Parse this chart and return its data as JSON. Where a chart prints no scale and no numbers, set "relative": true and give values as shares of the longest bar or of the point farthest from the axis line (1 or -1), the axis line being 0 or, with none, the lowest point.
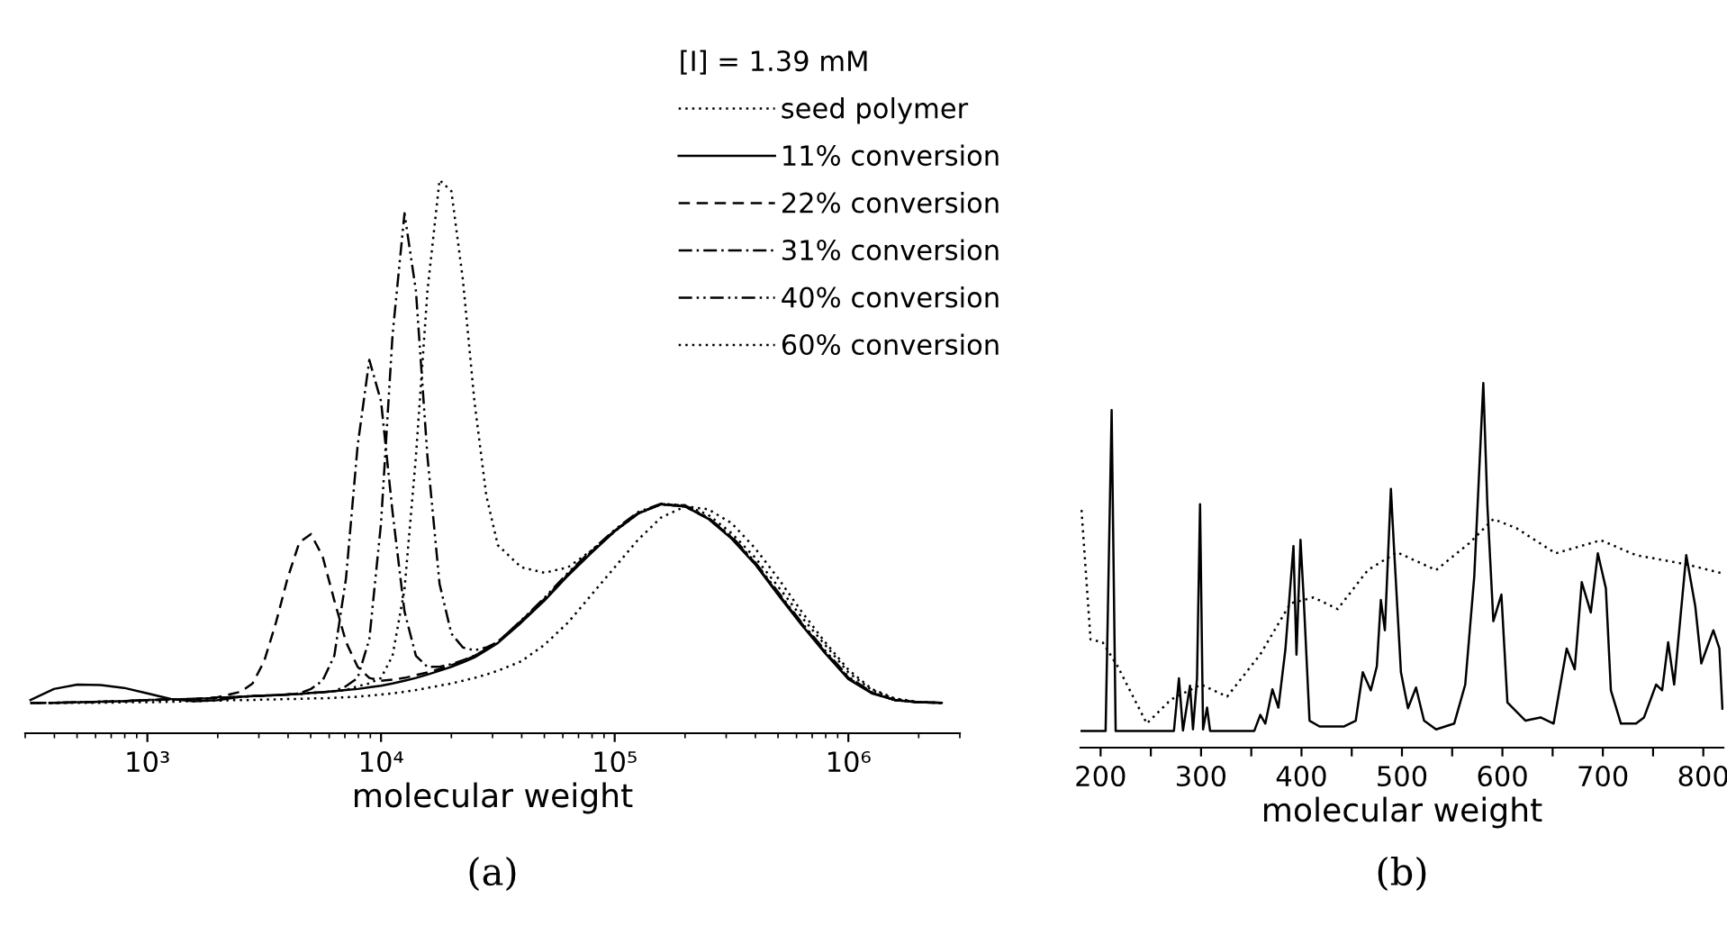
{
  "chart_data": [
    {
      "type": "line",
      "relative": true,
      "log": "x",
      "xlabel": "molecular weight",
      "legend_title": "[I] = 1.39 mM",
      "legend": "top right",
      "tick_labels": "x",
      "grid": false,
      "annotations": [
        "(a)"
      ],
      "xlim": [
        300,
        3000000
      ],
      "xticks": [
        {
          "value": 1000,
          "label": "10³"
        },
        {
          "value": 10000,
          "label": "10⁴"
        },
        {
          "value": 100000,
          "label": "10⁵"
        },
        {
          "value": 1000000,
          "label": "10⁶"
        }
      ],
      "x": [
        316,
        398,
        501,
        631,
        794,
        1000,
        1260,
        1580,
        2000,
        2510,
        2820,
        3160,
        3550,
        3980,
        4470,
        5010,
        5620,
        6310,
        7080,
        7940,
        8910,
        10000,
        11200,
        12600,
        14100,
        15800,
        17800,
        20000,
        22400,
        25100,
        28200,
        31600,
        39800,
        50100,
        63100,
        79400,
        100000,
        126000,
        158000,
        200000,
        251000,
        316000,
        398000,
        501000,
        631000,
        794000,
        1000000,
        1260000,
        1580000,
        2000000,
        2510000
      ],
      "series": [
        {
          "name": "seed polymer",
          "color": "#000000",
          "line_style": "dotted",
          "values": [
            0.055,
            0.055,
            0.055,
            0.055,
            0.056,
            0.056,
            0.057,
            0.058,
            0.059,
            0.06,
            0.06,
            0.061,
            0.061,
            0.062,
            0.062,
            0.063,
            0.063,
            0.064,
            0.065,
            0.066,
            0.068,
            0.07,
            0.072,
            0.075,
            0.078,
            0.082,
            0.086,
            0.09,
            0.095,
            0.1,
            0.106,
            0.113,
            0.13,
            0.16,
            0.2,
            0.25,
            0.3,
            0.35,
            0.39,
            0.41,
            0.405,
            0.38,
            0.335,
            0.28,
            0.22,
            0.165,
            0.115,
            0.08,
            0.063,
            0.056,
            0.055
          ]
        },
        {
          "name": "11% conversion",
          "color": "#000000",
          "line_style": "solid",
          "values": [
            0.06,
            0.08,
            0.088,
            0.087,
            0.082,
            0.072,
            0.062,
            0.058,
            0.06,
            0.066,
            0.067,
            0.068,
            0.069,
            0.07,
            0.071,
            0.073,
            0.074,
            0.076,
            0.078,
            0.08,
            0.083,
            0.086,
            0.09,
            0.095,
            0.1,
            0.106,
            0.113,
            0.12,
            0.128,
            0.137,
            0.15,
            0.163,
            0.2,
            0.24,
            0.285,
            0.326,
            0.365,
            0.397,
            0.414,
            0.41,
            0.388,
            0.352,
            0.306,
            0.25,
            0.196,
            0.145,
            0.098,
            0.072,
            0.06,
            0.056,
            0.055
          ]
        },
        {
          "name": "22% conversion",
          "color": "#000000",
          "line_style": "dashed",
          "values": [
            0.055,
            0.055,
            0.056,
            0.057,
            0.058,
            0.06,
            0.061,
            0.062,
            0.065,
            0.075,
            0.09,
            0.13,
            0.2,
            0.28,
            0.345,
            0.36,
            0.32,
            0.24,
            0.165,
            0.12,
            0.1,
            0.095,
            0.097,
            0.1,
            0.105,
            0.11,
            0.116,
            0.123,
            0.13,
            0.14,
            0.152,
            0.165,
            0.202,
            0.242,
            0.287,
            0.327,
            0.366,
            0.398,
            0.414,
            0.41,
            0.388,
            0.354,
            0.308,
            0.252,
            0.198,
            0.147,
            0.1,
            0.073,
            0.06,
            0.056,
            0.055
          ]
        },
        {
          "name": "31% conversion",
          "color": "#000000",
          "line_style": "dashdot",
          "values": [
            0.055,
            0.055,
            0.056,
            0.057,
            0.058,
            0.06,
            0.061,
            0.062,
            0.064,
            0.066,
            0.067,
            0.068,
            0.069,
            0.07,
            0.072,
            0.08,
            0.095,
            0.14,
            0.28,
            0.52,
            0.675,
            0.6,
            0.4,
            0.22,
            0.14,
            0.12,
            0.12,
            0.125,
            0.132,
            0.14,
            0.152,
            0.165,
            0.203,
            0.243,
            0.288,
            0.328,
            0.366,
            0.398,
            0.414,
            0.41,
            0.389,
            0.354,
            0.308,
            0.252,
            0.198,
            0.147,
            0.1,
            0.073,
            0.06,
            0.056,
            0.055
          ]
        },
        {
          "name": "40% conversion",
          "color": "#000000",
          "line_style": "dashdotdot",
          "values": [
            0.055,
            0.055,
            0.056,
            0.057,
            0.058,
            0.06,
            0.061,
            0.062,
            0.064,
            0.066,
            0.067,
            0.068,
            0.069,
            0.07,
            0.071,
            0.073,
            0.074,
            0.076,
            0.085,
            0.1,
            0.17,
            0.38,
            0.72,
            0.94,
            0.8,
            0.5,
            0.27,
            0.18,
            0.155,
            0.15,
            0.155,
            0.165,
            0.204,
            0.245,
            0.29,
            0.33,
            0.368,
            0.4,
            0.415,
            0.412,
            0.39,
            0.356,
            0.31,
            0.255,
            0.2,
            0.15,
            0.102,
            0.074,
            0.06,
            0.056,
            0.055
          ]
        },
        {
          "name": "60% conversion",
          "color": "#000000",
          "line_style": "dotted",
          "values": [
            0.055,
            0.055,
            0.056,
            0.057,
            0.058,
            0.06,
            0.061,
            0.062,
            0.064,
            0.066,
            0.067,
            0.068,
            0.069,
            0.07,
            0.071,
            0.073,
            0.074,
            0.076,
            0.078,
            0.085,
            0.09,
            0.1,
            0.14,
            0.26,
            0.5,
            0.8,
            1.0,
            0.98,
            0.82,
            0.6,
            0.43,
            0.34,
            0.3,
            0.29,
            0.3,
            0.33,
            0.365,
            0.397,
            0.414,
            0.412,
            0.395,
            0.362,
            0.318,
            0.265,
            0.21,
            0.16,
            0.11,
            0.078,
            0.062,
            0.056,
            0.055
          ]
        }
      ]
    },
    {
      "type": "line",
      "relative": true,
      "xlabel": "molecular weight",
      "tick_labels": "x",
      "grid": false,
      "legend": false,
      "annotations": [
        "(b)"
      ],
      "xlim": [
        180,
        820
      ],
      "xticks": [
        200,
        {
          "value": 250,
          "label": null
        },
        300,
        {
          "value": 350,
          "label": null
        },
        400,
        {
          "value": 450,
          "label": null
        },
        500,
        {
          "value": 550,
          "label": null
        },
        600,
        {
          "value": 650,
          "label": null
        },
        700,
        {
          "value": 750,
          "label": null
        },
        800
      ],
      "series": [
        {
          "color": "#000000",
          "line_style": "dotted",
          "x": [
            181,
            190,
            202,
            217,
            246,
            270,
            300,
            326,
            359,
            389,
            412,
            436,
            466,
            495,
            534,
            567,
            591,
            614,
            653,
            698,
            733,
            783,
            819
          ],
          "values": [
            0.652,
            0.297,
            0.289,
            0.223,
            0.066,
            0.132,
            0.173,
            0.14,
            0.256,
            0.396,
            0.412,
            0.38,
            0.487,
            0.536,
            0.487,
            0.561,
            0.627,
            0.602,
            0.533,
            0.569,
            0.528,
            0.503,
            0.478
          ]
        },
        {
          "color": "#000000",
          "line_style": "solid",
          "x": [
            181,
            205,
            211,
            215,
            273,
            278,
            282,
            289,
            292,
            296,
            299,
            302,
            306,
            309,
            353,
            359,
            364,
            371,
            377,
            384,
            392,
            395,
            399,
            402,
            408,
            418,
            442,
            454,
            461,
            469,
            475,
            479,
            483,
            489,
            492,
            499,
            506,
            514,
            522,
            534,
            552,
            563,
            572,
            581,
            585,
            591,
            599,
            605,
            623,
            638,
            651,
            664,
            672,
            679,
            688,
            695,
            703,
            708,
            718,
            733,
            741,
            753,
            759,
            765,
            771,
            783,
            792,
            798,
            810,
            816,
            819
          ],
          "values": [
            0.046,
            0.046,
            0.926,
            0.046,
            0.046,
            0.19,
            0.047,
            0.17,
            0.05,
            0.19,
            0.668,
            0.05,
            0.11,
            0.046,
            0.046,
            0.09,
            0.066,
            0.16,
            0.11,
            0.27,
            0.553,
            0.255,
            0.57,
            0.42,
            0.074,
            0.058,
            0.058,
            0.074,
            0.207,
            0.157,
            0.223,
            0.405,
            0.322,
            0.71,
            0.553,
            0.207,
            0.108,
            0.165,
            0.074,
            0.05,
            0.066,
            0.173,
            0.47,
            1.0,
            0.668,
            0.347,
            0.42,
            0.124,
            0.074,
            0.083,
            0.066,
            0.272,
            0.215,
            0.454,
            0.371,
            0.533,
            0.437,
            0.157,
            0.066,
            0.066,
            0.083,
            0.173,
            0.157,
            0.289,
            0.173,
            0.528,
            0.388,
            0.231,
            0.322,
            0.272,
            0.107
          ]
        }
      ]
    }
  ]
}
